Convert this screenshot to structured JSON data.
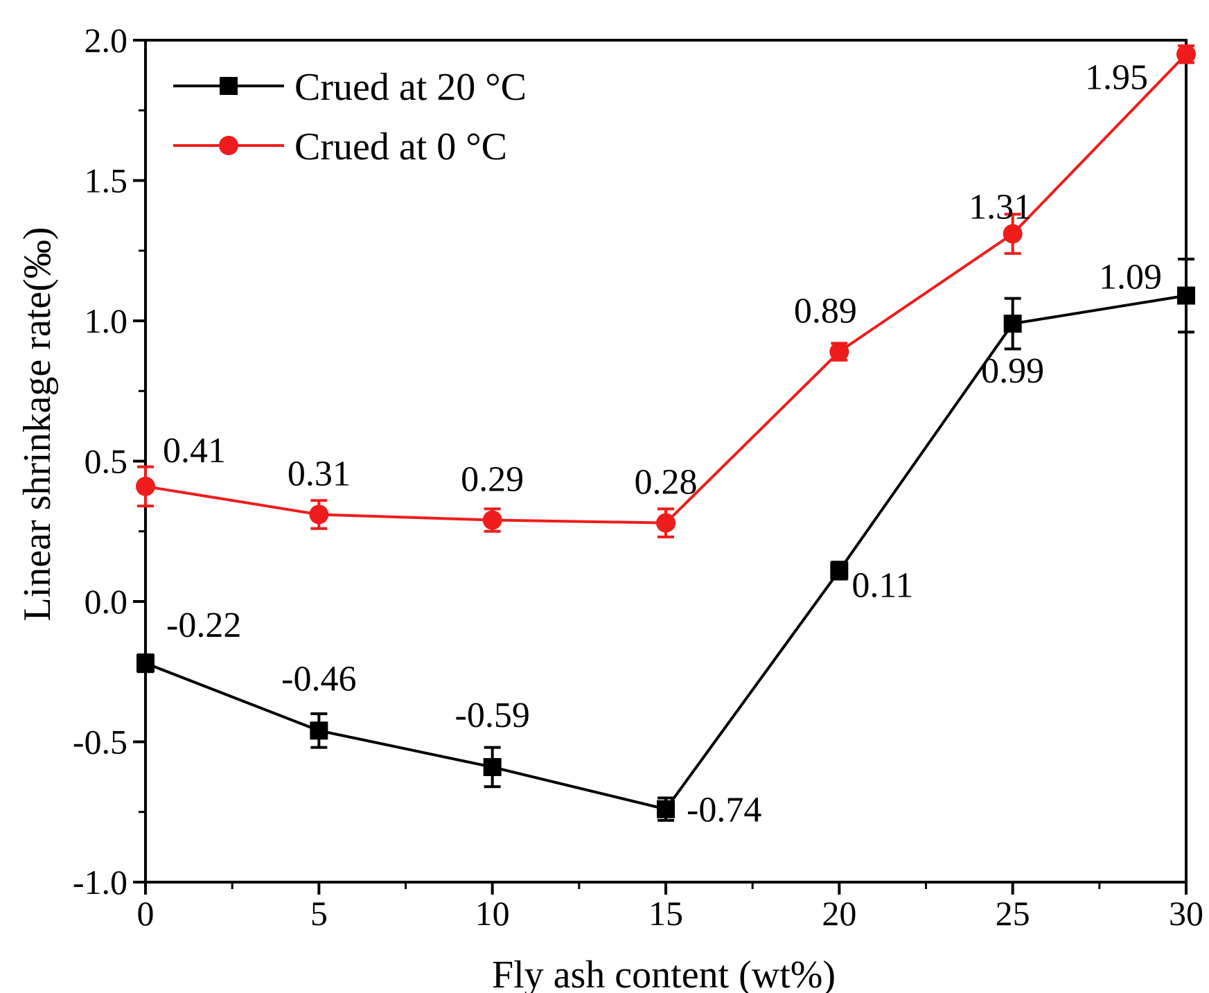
{
  "chart_data": {
    "type": "line",
    "title": "",
    "xlabel": "Fly ash content (wt%)",
    "ylabel": "Linear shrinkage rate(‰)",
    "xlim": [
      0,
      30
    ],
    "ylim": [
      -1.0,
      2.0
    ],
    "x_ticks": [
      "0",
      "5",
      "10",
      "15",
      "20",
      "25",
      "30"
    ],
    "y_ticks": [
      "-1.0",
      "-0.5",
      "0.0",
      "0.5",
      "1.0",
      "1.5",
      "2.0"
    ],
    "x": [
      0,
      5,
      10,
      15,
      20,
      25,
      30
    ],
    "legend_position": "top-left",
    "series": [
      {
        "name": "Crued at 20 °C",
        "color": "#000000",
        "marker": "square",
        "values": [
          -0.22,
          -0.46,
          -0.59,
          -0.74,
          0.11,
          0.99,
          1.09
        ],
        "errors": [
          0.03,
          0.06,
          0.07,
          0.04,
          0.03,
          0.09,
          0.13
        ],
        "labels": [
          "-0.22",
          "-0.46",
          "-0.59",
          "-0.74",
          "0.11",
          "0.99",
          "1.09"
        ]
      },
      {
        "name": "Crued at 0 °C",
        "color": "#ee1c1c",
        "marker": "circle",
        "values": [
          0.41,
          0.31,
          0.29,
          0.28,
          0.89,
          1.31,
          1.95
        ],
        "errors": [
          0.07,
          0.05,
          0.04,
          0.05,
          0.03,
          0.07,
          0.03
        ],
        "labels": [
          "0.41",
          "0.31",
          "0.29",
          "0.28",
          "0.89",
          "1.31",
          "1.95"
        ]
      }
    ]
  }
}
